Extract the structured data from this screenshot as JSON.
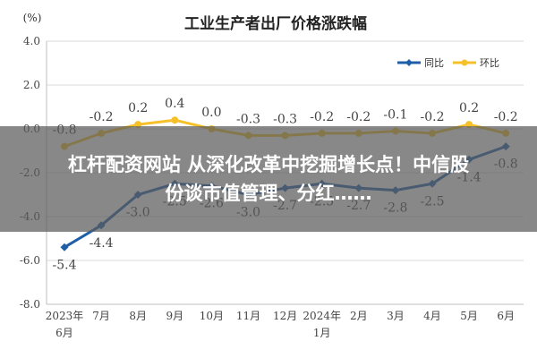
{
  "chart_data": {
    "type": "line",
    "title": "工业生产者出厂价格涨跌幅",
    "unit_label": "(%)",
    "ylim": [
      -8.0,
      4.0
    ],
    "yticks": [
      "4.0",
      "2.0",
      "0.0",
      "-2.0",
      "-4.0",
      "-6.0",
      "-8.0"
    ],
    "ytick_values": [
      4,
      2,
      0,
      -2,
      -4,
      -6,
      -8
    ],
    "grid": true,
    "legend_position": "top-right",
    "categories": [
      {
        "top": "2023年",
        "bottom": "6月"
      },
      {
        "top": "7月",
        "bottom": ""
      },
      {
        "top": "8月",
        "bottom": ""
      },
      {
        "top": "9月",
        "bottom": ""
      },
      {
        "top": "10月",
        "bottom": ""
      },
      {
        "top": "11月",
        "bottom": ""
      },
      {
        "top": "12月",
        "bottom": ""
      },
      {
        "top": "2024年",
        "bottom": "1月"
      },
      {
        "top": "2月",
        "bottom": ""
      },
      {
        "top": "3月",
        "bottom": ""
      },
      {
        "top": "4月",
        "bottom": ""
      },
      {
        "top": "5月",
        "bottom": ""
      },
      {
        "top": "6月",
        "bottom": ""
      }
    ],
    "series": [
      {
        "name": "同比",
        "color": "#1f5fa8",
        "values": [
          -5.4,
          -4.4,
          -3.0,
          -2.5,
          -2.6,
          -3.0,
          -2.7,
          -2.5,
          -2.7,
          -2.8,
          -2.5,
          -1.4,
          -0.8
        ],
        "labels": [
          "-5.4",
          "-4.4",
          "-3.0",
          "-2.5",
          "-2.6",
          "-3.0",
          "-2.7",
          "-2.5",
          "-2.7",
          "-2.8",
          "-2.5",
          "-1.4",
          "-0.8"
        ]
      },
      {
        "name": "环比",
        "color": "#f5c02a",
        "values": [
          -0.8,
          -0.2,
          0.2,
          0.4,
          0.0,
          -0.3,
          -0.3,
          -0.2,
          -0.2,
          -0.1,
          -0.2,
          0.2,
          -0.2
        ],
        "labels": [
          "-0.8",
          "-0.2",
          "0.2",
          "0.4",
          "0.0",
          "-0.3",
          "-0.3",
          "-0.2",
          "-0.2",
          "-0.1",
          "-0.2",
          "0.2",
          "-0.2"
        ]
      }
    ]
  },
  "overlay": {
    "line1": "杠杆配资网站 从深化改革中挖掘增长点！中信股",
    "line2": "份谈市值管理、分红……"
  }
}
